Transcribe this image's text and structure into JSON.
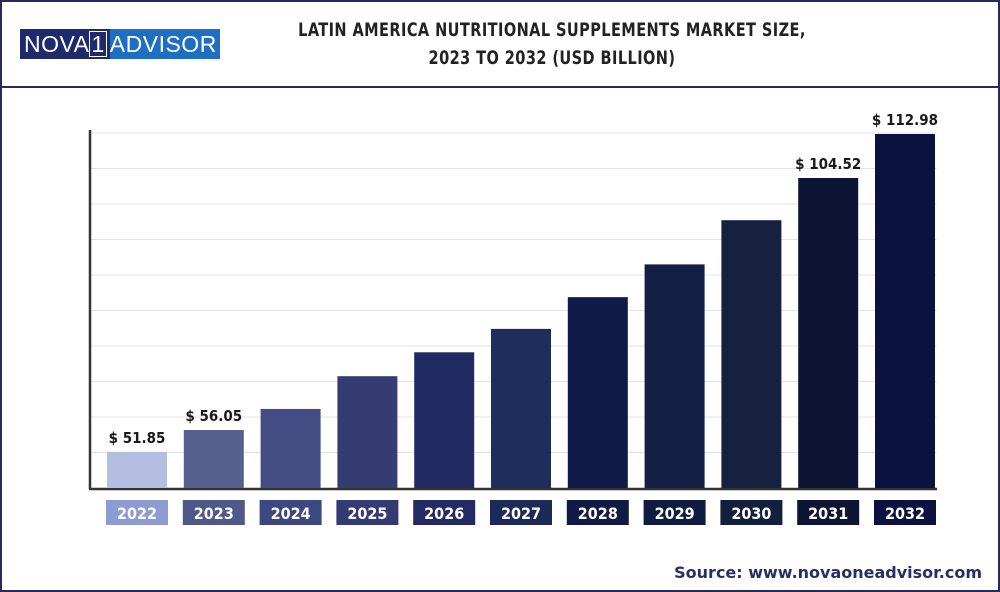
{
  "header": {
    "logo_text": "NOVA 1 ADVISOR",
    "title_line1": "LATIN AMERICA NUTRITIONAL SUPPLEMENTS MARKET SIZE,",
    "title_line2": "2023 TO 2032 (USD BILLION)"
  },
  "source": "Source: www.novaoneadvisor.com",
  "chart_data": {
    "type": "bar",
    "title": "LATIN AMERICA NUTRITIONAL SUPPLEMENTS MARKET SIZE, 2023 TO 2032 (USD BILLION)",
    "xlabel": "",
    "ylabel": "",
    "categories": [
      "2022",
      "2023",
      "2024",
      "2025",
      "2026",
      "2027",
      "2028",
      "2029",
      "2030",
      "2031",
      "2032"
    ],
    "values": [
      51.85,
      56.05,
      60.1,
      66.4,
      71.0,
      75.5,
      81.6,
      87.9,
      96.4,
      104.52,
      112.98
    ],
    "data_labels": [
      "$ 51.85",
      "$ 56.05",
      "",
      "",
      "",
      "",
      "",
      "",
      "",
      "$ 104.52",
      "$ 112.98"
    ],
    "grid": true,
    "colors": [
      "#b4bee0",
      "#56608f",
      "#434d84",
      "#343c72",
      "#222a63",
      "#1e2e5c",
      "#101a48",
      "#141f44",
      "#15213f",
      "#0e1434",
      "#0b1240"
    ],
    "label_box_colors": [
      "#8e9bd0",
      "#4e5889",
      "#3d4780",
      "#333b72",
      "#242b62",
      "#1d2a58",
      "#101a45",
      "#121c42",
      "#13203d",
      "#0e1434",
      "#0b1240"
    ]
  }
}
